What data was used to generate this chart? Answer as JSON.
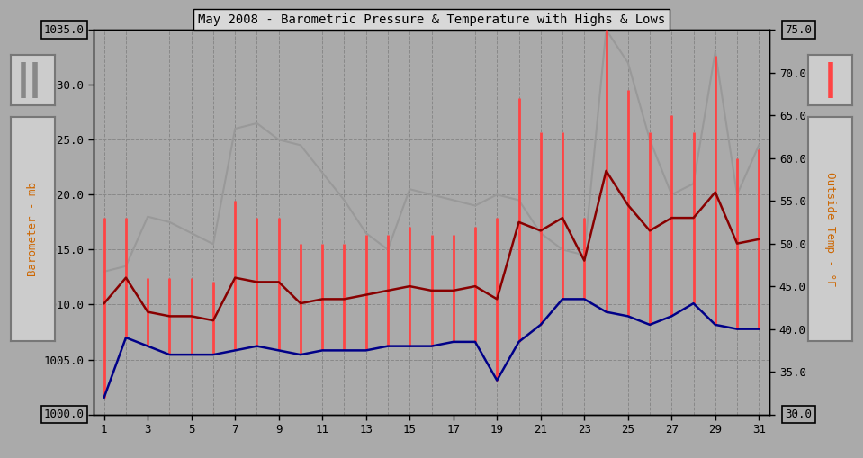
{
  "title": "May 2008 - Barometric Pressure & Temperature with Highs & Lows",
  "bg_color": "#aaaaaa",
  "left_ylabel": "Barometer - mb",
  "right_ylabel": "Outside Temp - °F",
  "baro_color": "#999999",
  "temp_hl_color": "#ff4444",
  "temp_avg_color": "#880000",
  "temp_low_color": "#000088",
  "ylim_left": [
    1000.0,
    1035.0
  ],
  "ylim_right": [
    30.0,
    75.0
  ],
  "yticks_left": [
    1000.0,
    1005.0,
    1010.0,
    1015.0,
    1020.0,
    1025.0,
    1030.0,
    1035.0
  ],
  "yticks_right": [
    30.0,
    35.0,
    40.0,
    45.0,
    50.0,
    55.0,
    60.0,
    65.0,
    70.0,
    75.0
  ],
  "xticks": [
    1,
    3,
    5,
    7,
    9,
    11,
    13,
    15,
    17,
    19,
    21,
    23,
    25,
    27,
    29,
    31
  ],
  "days": [
    1,
    2,
    3,
    4,
    5,
    6,
    7,
    8,
    9,
    10,
    11,
    12,
    13,
    14,
    15,
    16,
    17,
    18,
    19,
    20,
    21,
    22,
    23,
    24,
    25,
    26,
    27,
    28,
    29,
    30,
    31
  ],
  "baro": [
    1013.0,
    1013.5,
    1018.0,
    1017.5,
    1016.5,
    1015.5,
    1026.0,
    1026.5,
    1025.0,
    1024.5,
    1022.0,
    1019.5,
    1016.5,
    1015.0,
    1020.5,
    1020.0,
    1019.5,
    1019.0,
    1020.0,
    1019.5,
    1016.5,
    1015.0,
    1014.5,
    1035.0,
    1032.0,
    1025.0,
    1020.0,
    1021.0,
    1033.0,
    1020.0,
    1024.5
  ],
  "temp_high": [
    53.0,
    53.0,
    46.0,
    46.0,
    46.0,
    45.5,
    55.0,
    53.0,
    53.0,
    50.0,
    50.0,
    50.0,
    51.0,
    51.0,
    52.0,
    51.0,
    51.0,
    52.0,
    53.0,
    67.0,
    63.0,
    63.0,
    53.0,
    75.0,
    68.0,
    63.0,
    65.0,
    63.0,
    72.0,
    60.0,
    61.0
  ],
  "temp_low": [
    32.0,
    39.0,
    38.0,
    37.0,
    37.0,
    37.0,
    37.5,
    38.0,
    37.5,
    37.0,
    37.5,
    37.5,
    37.5,
    38.0,
    38.0,
    38.0,
    38.5,
    38.5,
    34.0,
    38.5,
    40.5,
    43.5,
    43.5,
    42.0,
    41.5,
    40.5,
    41.5,
    43.0,
    40.5,
    40.0,
    40.0
  ],
  "temp_avg": [
    43.0,
    46.0,
    42.0,
    41.5,
    41.5,
    41.0,
    46.0,
    45.5,
    45.5,
    43.0,
    43.5,
    43.5,
    44.0,
    44.5,
    45.0,
    44.5,
    44.5,
    45.0,
    43.5,
    52.5,
    51.5,
    53.0,
    48.0,
    58.5,
    54.5,
    51.5,
    53.0,
    53.0,
    56.0,
    50.0,
    50.5
  ]
}
